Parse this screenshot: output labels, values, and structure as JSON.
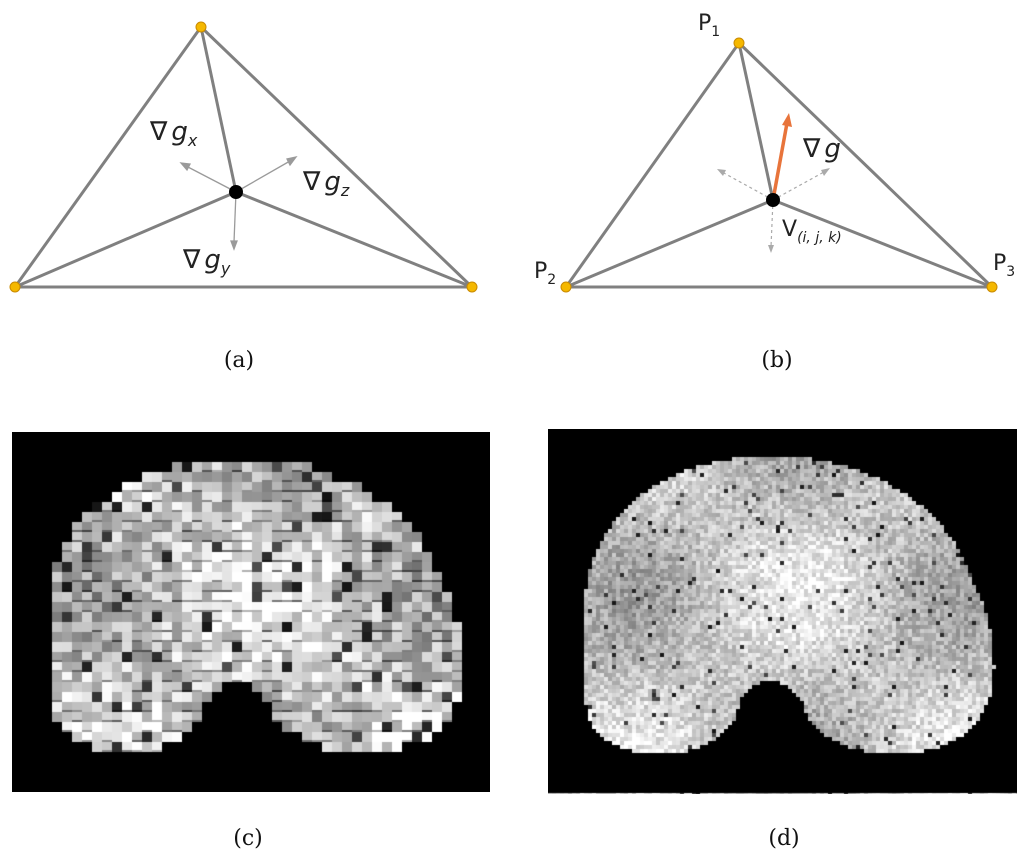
{
  "panels": {
    "a": {
      "caption": "(a)",
      "labels": {
        "grad_x_symbol": "∇",
        "grad_x_var": "g",
        "grad_x_sub": "x",
        "grad_y_symbol": "∇",
        "grad_y_var": "g",
        "grad_y_sub": "y",
        "grad_z_symbol": "∇",
        "grad_z_var": "g",
        "grad_z_sub": "z"
      }
    },
    "b": {
      "caption": "(b)",
      "labels": {
        "p1_main": "P",
        "p1_sub": "1",
        "p2_main": "P",
        "p2_sub": "2",
        "p3_main": "P",
        "p3_sub": "3",
        "grad_symbol": "∇",
        "grad_var": "g",
        "v_main": "V",
        "v_sub": "(i, j, k)"
      }
    },
    "c": {
      "caption": "(c)"
    },
    "d": {
      "caption": "(d)"
    }
  },
  "colors": {
    "edge": "#808080",
    "vertex": "#f5b800",
    "vertex_stroke": "#c98a00",
    "center": "#000000",
    "arrow_gray": "#999999",
    "arrow_orange": "#e8743b",
    "background_render": "#000000"
  }
}
